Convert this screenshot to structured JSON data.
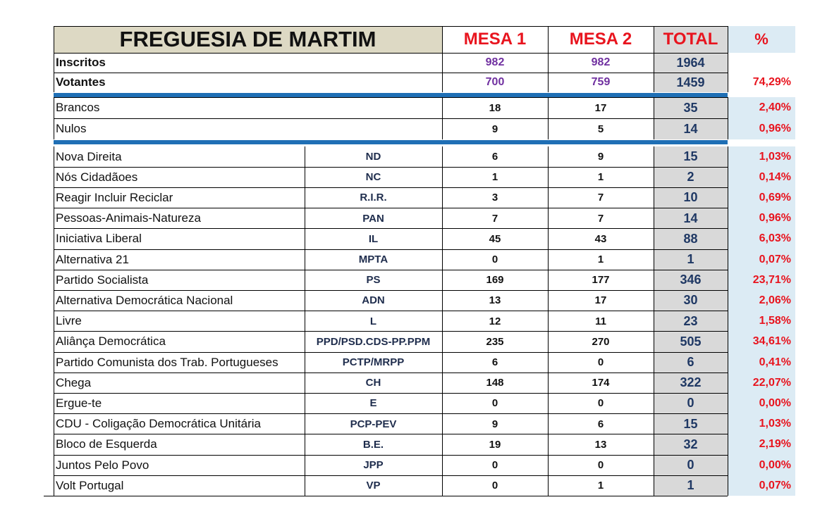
{
  "header": {
    "title": "FREGUESIA DE MARTIM",
    "mesa1": "MESA 1",
    "mesa2": "MESA 2",
    "total": "TOTAL",
    "pct": "%"
  },
  "summary": [
    {
      "label": "Inscritos",
      "mesa1": "982",
      "mesa2": "982",
      "total": "1964",
      "pct": ""
    },
    {
      "label": "Votantes",
      "mesa1": "700",
      "mesa2": "759",
      "total": "1459",
      "pct": "74,29%"
    }
  ],
  "blank_null": [
    {
      "label": "Brancos",
      "mesa1": "18",
      "mesa2": "17",
      "total": "35",
      "pct": "2,40%"
    },
    {
      "label": "Nulos",
      "mesa1": "9",
      "mesa2": "5",
      "total": "14",
      "pct": "0,96%"
    }
  ],
  "parties": [
    {
      "name": "Nova Direita",
      "abbr": "ND",
      "mesa1": "6",
      "mesa2": "9",
      "total": "15",
      "pct": "1,03%"
    },
    {
      "name": "Nós Cidadãoes",
      "abbr": "NC",
      "mesa1": "1",
      "mesa2": "1",
      "total": "2",
      "pct": "0,14%"
    },
    {
      "name": "Reagir Incluir Reciclar",
      "abbr": "R.I.R.",
      "mesa1": "3",
      "mesa2": "7",
      "total": "10",
      "pct": "0,69%"
    },
    {
      "name": "Pessoas-Animais-Natureza",
      "abbr": "PAN",
      "mesa1": "7",
      "mesa2": "7",
      "total": "14",
      "pct": "0,96%"
    },
    {
      "name": "Iniciativa Liberal",
      "abbr": "IL",
      "mesa1": "45",
      "mesa2": "43",
      "total": "88",
      "pct": "6,03%"
    },
    {
      "name": "Alternativa 21",
      "abbr": "MPTA",
      "mesa1": "0",
      "mesa2": "1",
      "total": "1",
      "pct": "0,07%"
    },
    {
      "name": "Partido Socialista",
      "abbr": "PS",
      "mesa1": "169",
      "mesa2": "177",
      "total": "346",
      "pct": "23,71%"
    },
    {
      "name": "Alternativa Democrática Nacional",
      "abbr": "ADN",
      "mesa1": "13",
      "mesa2": "17",
      "total": "30",
      "pct": "2,06%"
    },
    {
      "name": "Livre",
      "abbr": "L",
      "mesa1": "12",
      "mesa2": "11",
      "total": "23",
      "pct": "1,58%"
    },
    {
      "name": "Aliânça Democrática",
      "abbr": "PPD/PSD.CDS-PP.PPM",
      "mesa1": "235",
      "mesa2": "270",
      "total": "505",
      "pct": "34,61%"
    },
    {
      "name": "Partido Comunista dos Trab. Portugueses",
      "abbr": "PCTP/MRPP",
      "mesa1": "6",
      "mesa2": "0",
      "total": "6",
      "pct": "0,41%"
    },
    {
      "name": "Chega",
      "abbr": "CH",
      "mesa1": "148",
      "mesa2": "174",
      "total": "322",
      "pct": "22,07%"
    },
    {
      "name": "Ergue-te",
      "abbr": "E",
      "mesa1": "0",
      "mesa2": "0",
      "total": "0",
      "pct": "0,00%"
    },
    {
      "name": "CDU - Coligação Democrática Unitária",
      "abbr": "PCP-PEV",
      "mesa1": "9",
      "mesa2": "6",
      "total": "15",
      "pct": "1,03%"
    },
    {
      "name": "Bloco de Esquerda",
      "abbr": "B.E.",
      "mesa1": "19",
      "mesa2": "13",
      "total": "32",
      "pct": "2,19%"
    },
    {
      "name": "Juntos Pelo Povo",
      "abbr": "JPP",
      "mesa1": "0",
      "mesa2": "0",
      "total": "0",
      "pct": "0,00%"
    },
    {
      "name": "Volt Portugal",
      "abbr": "VP",
      "mesa1": "0",
      "mesa2": "1",
      "total": "1",
      "pct": "0,07%"
    }
  ]
}
